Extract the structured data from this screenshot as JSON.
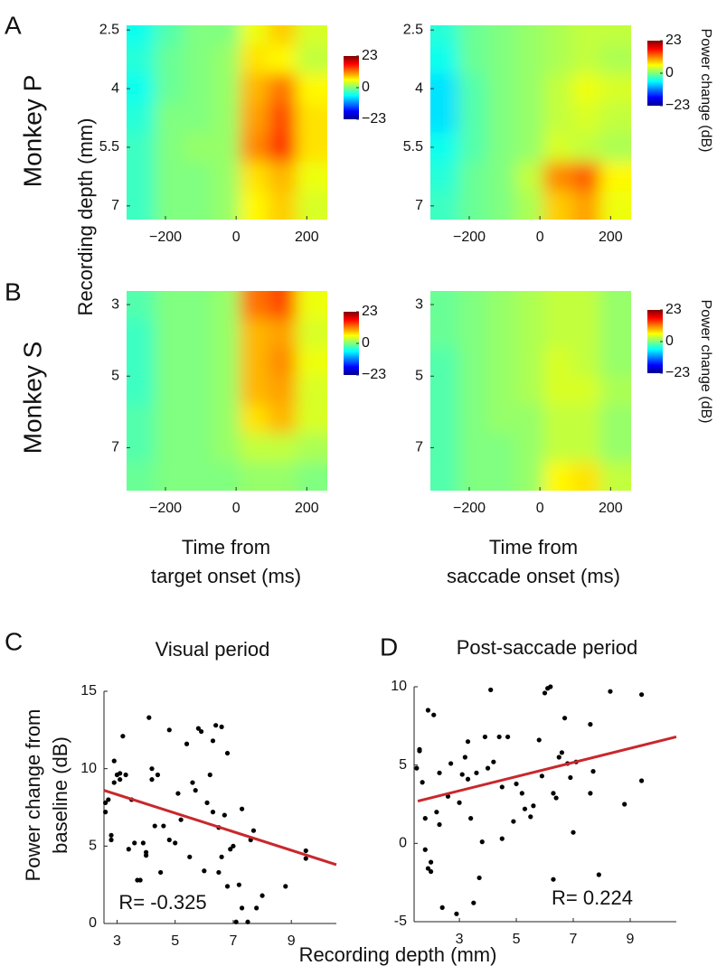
{
  "chart_data": [
    {
      "type": "heatmap",
      "panel": "A",
      "row_label": "Monkey P",
      "ylabel": "Recording depth (mm)",
      "xlim": [
        -310,
        258
      ],
      "xticks": [
        {
          "value": -200,
          "label": "−200"
        },
        0,
        200
      ],
      "ylim": [
        2.38,
        7.35
      ],
      "yticks": [
        2.5,
        4,
        5.5,
        7
      ],
      "clim": [
        -23,
        23
      ],
      "cticks": [
        23,
        0,
        {
          "value": -23,
          "label": "−23"
        }
      ],
      "x": [
        -270,
        -190,
        -110,
        -30,
        50,
        130,
        210
      ],
      "y": [
        2.5,
        3.25,
        4,
        4.75,
        5.5,
        6.25,
        7
      ],
      "z": [
        [
          -5,
          -2,
          0,
          0,
          5,
          8,
          4
        ],
        [
          -4,
          -1,
          0,
          1,
          7,
          6,
          3
        ],
        [
          -5,
          -1,
          0,
          1,
          9,
          12,
          6
        ],
        [
          -4,
          0,
          0,
          1,
          10,
          14,
          7
        ],
        [
          -3,
          0,
          1,
          1,
          11,
          15,
          7
        ],
        [
          -3,
          0,
          0,
          1,
          7,
          9,
          5
        ],
        [
          -3,
          0,
          0,
          1,
          6,
          8,
          4
        ]
      ]
    },
    {
      "type": "heatmap",
      "colorbar_label": "Power change (dB)",
      "xlim": [
        -310,
        258
      ],
      "xticks": [
        {
          "value": -200,
          "label": "−200"
        },
        0,
        200
      ],
      "ylim": [
        2.38,
        7.35
      ],
      "yticks": [
        2.5,
        4,
        5.5,
        7
      ],
      "clim": [
        -23,
        23
      ],
      "cticks": [
        23,
        0,
        {
          "value": -23,
          "label": "−23"
        }
      ],
      "x": [
        -270,
        -190,
        -110,
        -30,
        50,
        130,
        210
      ],
      "y": [
        2.5,
        3.25,
        4,
        4.75,
        5.5,
        6.25,
        7
      ],
      "z": [
        [
          -4,
          -1,
          0,
          1,
          2,
          3,
          3
        ],
        [
          -5,
          -1,
          0,
          1,
          2,
          3,
          2
        ],
        [
          -7,
          -2,
          0,
          1,
          3,
          5,
          4
        ],
        [
          -7,
          -2,
          0,
          1,
          3,
          4,
          3
        ],
        [
          -5,
          -2,
          0,
          1,
          4,
          3,
          2
        ],
        [
          -4,
          -1,
          0,
          3,
          11,
          13,
          6
        ],
        [
          -3,
          -1,
          0,
          2,
          8,
          10,
          5
        ]
      ]
    },
    {
      "type": "heatmap",
      "panel": "B",
      "row_label": "Monkey S",
      "xlabel": [
        "Time from",
        "target onset (ms)"
      ],
      "xlim": [
        -310,
        258
      ],
      "xticks": [
        {
          "value": -200,
          "label": "−200"
        },
        0,
        200
      ],
      "ylim": [
        2.62,
        8.2
      ],
      "yticks": [
        3,
        5,
        7
      ],
      "clim": [
        -23,
        23
      ],
      "cticks": [
        23,
        0,
        {
          "value": -23,
          "label": "−23"
        }
      ],
      "x": [
        -270,
        -190,
        -110,
        -30,
        50,
        130,
        210
      ],
      "y": [
        3,
        3.8,
        4.6,
        5.4,
        6.2,
        7,
        7.8
      ],
      "z": [
        [
          -2,
          0,
          0,
          1,
          12,
          14,
          5
        ],
        [
          -3,
          0,
          0,
          1,
          9,
          10,
          4
        ],
        [
          -3,
          0,
          0,
          1,
          9,
          11,
          5
        ],
        [
          -3,
          0,
          0,
          1,
          9,
          10,
          4
        ],
        [
          -2,
          0,
          0,
          1,
          7,
          9,
          4
        ],
        [
          -2,
          0,
          0,
          1,
          3,
          3,
          2
        ],
        [
          -1,
          0,
          0,
          0,
          1,
          1,
          0
        ]
      ]
    },
    {
      "type": "heatmap",
      "colorbar_label": "Power change (dB)",
      "xlabel": [
        "Time from",
        "saccade onset (ms)"
      ],
      "xlim": [
        -310,
        258
      ],
      "xticks": [
        {
          "value": -200,
          "label": "−200"
        },
        0,
        200
      ],
      "ylim": [
        2.62,
        8.2
      ],
      "yticks": [
        3,
        5,
        7
      ],
      "clim": [
        -23,
        23
      ],
      "cticks": [
        23,
        0,
        {
          "value": -23,
          "label": "−23"
        }
      ],
      "x": [
        -270,
        -190,
        -110,
        -30,
        50,
        130,
        210
      ],
      "y": [
        3,
        3.8,
        4.6,
        5.4,
        6.2,
        7,
        7.8
      ],
      "z": [
        [
          -1,
          0,
          1,
          2,
          3,
          3,
          1
        ],
        [
          -1,
          0,
          1,
          2,
          3,
          3,
          1
        ],
        [
          -2,
          0,
          1,
          2,
          4,
          3,
          1
        ],
        [
          -2,
          0,
          1,
          2,
          4,
          4,
          2
        ],
        [
          -2,
          0,
          1,
          1,
          3,
          3,
          1
        ],
        [
          -2,
          0,
          0,
          1,
          3,
          3,
          1
        ],
        [
          -2,
          0,
          0,
          1,
          6,
          7,
          3
        ]
      ]
    },
    {
      "type": "scatter",
      "panel": "C",
      "title": "Visual period",
      "ylabel": [
        "Power change from",
        "baseline (dB)"
      ],
      "xlabel": "Recording depth (mm)",
      "annotation": "R= -0.325",
      "xlim": [
        2.55,
        10.55
      ],
      "xticks": [
        3,
        5,
        7,
        9
      ],
      "ylim": [
        0,
        15
      ],
      "yticks": [
        0,
        5,
        10,
        15
      ],
      "color": "#000000",
      "x": [
        2.6,
        2.6,
        2.7,
        2.8,
        2.8,
        2.9,
        2.9,
        3.0,
        3.1,
        3.1,
        3.2,
        3.3,
        3.4,
        3.5,
        3.6,
        3.7,
        3.8,
        3.9,
        4.0,
        4.0,
        4.1,
        4.2,
        4.2,
        4.3,
        4.4,
        4.5,
        4.6,
        4.8,
        4.8,
        5.0,
        5.1,
        5.2,
        5.4,
        5.5,
        5.6,
        5.7,
        5.8,
        5.9,
        6.0,
        6.1,
        6.2,
        6.3,
        6.3,
        6.4,
        6.5,
        6.5,
        6.6,
        6.6,
        6.7,
        6.8,
        6.8,
        6.9,
        7.0,
        7.1,
        7.2,
        7.3,
        7.3,
        7.5,
        7.6,
        7.7,
        7.8,
        8.0,
        8.8,
        9.5,
        9.5
      ],
      "y": [
        7.8,
        7.2,
        8.0,
        5.4,
        5.7,
        9.1,
        10.5,
        9.6,
        9.3,
        9.7,
        12.1,
        9.6,
        4.8,
        8.0,
        5.2,
        2.8,
        2.8,
        5.2,
        4.6,
        4.4,
        13.3,
        10.0,
        9.3,
        6.3,
        9.6,
        3.3,
        6.3,
        12.5,
        5.4,
        5.2,
        8.4,
        6.7,
        11.6,
        4.3,
        9.1,
        8.6,
        12.6,
        12.4,
        3.4,
        7.8,
        9.6,
        11.8,
        7.2,
        12.8,
        6.2,
        3.3,
        12.7,
        4.3,
        7.0,
        11.0,
        2.4,
        4.8,
        5.0,
        0.1,
        2.5,
        7.4,
        1.0,
        0.1,
        5.4,
        6.0,
        1.0,
        1.8,
        2.4,
        4.2,
        4.7
      ],
      "fit": {
        "color": "#c8282c",
        "x": [
          2.55,
          10.55
        ],
        "y": [
          8.6,
          3.8
        ]
      }
    },
    {
      "type": "scatter",
      "panel": "D",
      "title": "Post-saccade period",
      "annotation": "R= 0.224",
      "xlim": [
        1.41,
        10.62
      ],
      "xticks": [
        3,
        5,
        7,
        9
      ],
      "ylim": [
        -5,
        10
      ],
      "yticks": [
        -5,
        0,
        5,
        10
      ],
      "color": "#000000",
      "x": [
        1.5,
        1.6,
        1.6,
        1.7,
        1.8,
        1.8,
        1.9,
        1.9,
        2.0,
        2.0,
        2.1,
        2.2,
        2.3,
        2.3,
        2.4,
        2.6,
        2.7,
        2.9,
        3.0,
        3.1,
        3.2,
        3.3,
        3.3,
        3.4,
        3.5,
        3.6,
        3.7,
        3.8,
        3.9,
        4.0,
        4.1,
        4.2,
        4.4,
        4.5,
        4.5,
        4.7,
        4.9,
        5.0,
        5.2,
        5.3,
        5.5,
        5.6,
        5.8,
        5.9,
        6.0,
        6.1,
        6.2,
        6.3,
        6.3,
        6.4,
        6.5,
        6.6,
        6.7,
        6.8,
        6.9,
        7.0,
        7.1,
        7.6,
        7.6,
        7.7,
        7.9,
        8.3,
        8.8,
        9.4,
        9.4
      ],
      "y": [
        4.8,
        5.9,
        6.0,
        3.9,
        -0.4,
        1.6,
        8.5,
        -1.6,
        -1.8,
        -1.2,
        8.2,
        2.0,
        1.2,
        4.5,
        -4.1,
        3.0,
        5.1,
        -4.5,
        2.6,
        4.4,
        5.5,
        6.5,
        4.1,
        1.6,
        -3.8,
        4.5,
        -2.2,
        0.1,
        6.8,
        4.8,
        9.8,
        5.2,
        6.8,
        3.6,
        0.3,
        6.8,
        1.4,
        3.8,
        3.2,
        2.2,
        1.7,
        2.4,
        6.6,
        4.3,
        9.6,
        9.9,
        10.0,
        -2.3,
        3.2,
        2.9,
        5.5,
        5.8,
        8.0,
        5.1,
        4.2,
        0.7,
        5.2,
        7.6,
        3.2,
        4.6,
        -2.0,
        9.7,
        2.5,
        9.5,
        4.0
      ],
      "fit": {
        "color": "#c8282c",
        "x": [
          1.54,
          10.62
        ],
        "y": [
          2.7,
          6.8
        ]
      }
    }
  ]
}
